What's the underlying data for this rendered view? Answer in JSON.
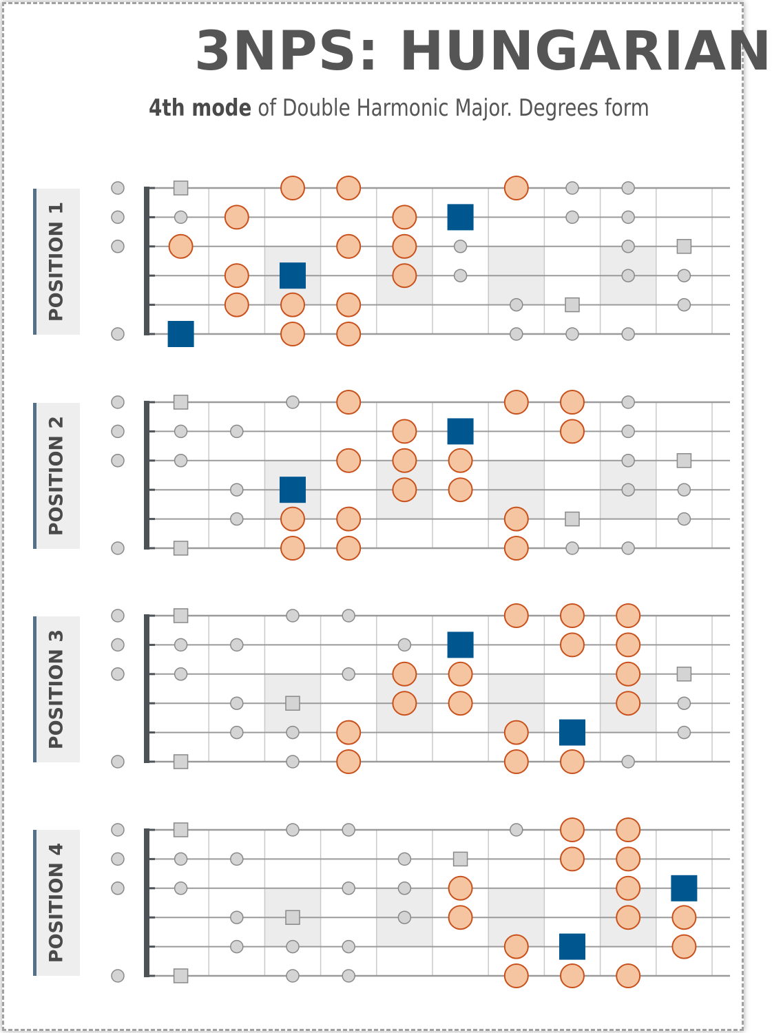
{
  "title": "3NPS: HUNGARIAN",
  "subtitle": {
    "bold": "4th mode",
    "rest": " of Double Harmonic Major. Degrees form"
  },
  "colors": {
    "scale_note_fill": "#f5c4a1",
    "scale_note_stroke": "#c8501b",
    "root_note": "#00578f",
    "other_note_fill": "#d4d4d4",
    "other_note_stroke": "#888888",
    "position_bar": "#557089",
    "fret_marker_shade": "#ececec",
    "nut": "#4d5257"
  },
  "fretboard": {
    "strings": 6,
    "visible_frets": 10,
    "shaded_frets": [
      3,
      5,
      7,
      9
    ],
    "open_string_dots_per_position": [
      [
        1,
        2,
        3,
        6
      ],
      [
        1,
        2,
        3,
        6
      ],
      [
        1,
        2,
        3,
        6
      ],
      [
        1,
        2,
        3,
        6
      ]
    ]
  },
  "positions": [
    {
      "label": "POSITION 1",
      "notes": [
        {
          "s": 1,
          "f": 1,
          "t": "sq"
        },
        {
          "s": 1,
          "f": 3,
          "t": "sc"
        },
        {
          "s": 1,
          "f": 4,
          "t": "sc"
        },
        {
          "s": 1,
          "f": 7,
          "t": "sc"
        },
        {
          "s": 1,
          "f": 8,
          "t": "dot"
        },
        {
          "s": 1,
          "f": 9,
          "t": "dot"
        },
        {
          "s": 2,
          "f": 1,
          "t": "dot"
        },
        {
          "s": 2,
          "f": 2,
          "t": "sc"
        },
        {
          "s": 2,
          "f": 5,
          "t": "sc"
        },
        {
          "s": 2,
          "f": 6,
          "t": "root"
        },
        {
          "s": 2,
          "f": 8,
          "t": "dot"
        },
        {
          "s": 2,
          "f": 9,
          "t": "dot"
        },
        {
          "s": 3,
          "f": 1,
          "t": "sc"
        },
        {
          "s": 3,
          "f": 4,
          "t": "sc"
        },
        {
          "s": 3,
          "f": 5,
          "t": "sc"
        },
        {
          "s": 3,
          "f": 6,
          "t": "dot"
        },
        {
          "s": 3,
          "f": 9,
          "t": "dot"
        },
        {
          "s": 3,
          "f": 10,
          "t": "sq"
        },
        {
          "s": 4,
          "f": 2,
          "t": "sc"
        },
        {
          "s": 4,
          "f": 3,
          "t": "root"
        },
        {
          "s": 4,
          "f": 5,
          "t": "sc"
        },
        {
          "s": 4,
          "f": 6,
          "t": "dot"
        },
        {
          "s": 4,
          "f": 9,
          "t": "dot"
        },
        {
          "s": 4,
          "f": 10,
          "t": "dot"
        },
        {
          "s": 5,
          "f": 2,
          "t": "sc"
        },
        {
          "s": 5,
          "f": 3,
          "t": "sc"
        },
        {
          "s": 5,
          "f": 4,
          "t": "sc"
        },
        {
          "s": 5,
          "f": 7,
          "t": "dot"
        },
        {
          "s": 5,
          "f": 8,
          "t": "sq"
        },
        {
          "s": 5,
          "f": 10,
          "t": "dot"
        },
        {
          "s": 6,
          "f": 1,
          "t": "root"
        },
        {
          "s": 6,
          "f": 3,
          "t": "sc"
        },
        {
          "s": 6,
          "f": 4,
          "t": "sc"
        },
        {
          "s": 6,
          "f": 7,
          "t": "dot"
        },
        {
          "s": 6,
          "f": 8,
          "t": "dot"
        },
        {
          "s": 6,
          "f": 9,
          "t": "dot"
        }
      ]
    },
    {
      "label": "POSITION 2",
      "notes": [
        {
          "s": 1,
          "f": 1,
          "t": "sq"
        },
        {
          "s": 1,
          "f": 3,
          "t": "dot"
        },
        {
          "s": 1,
          "f": 4,
          "t": "sc"
        },
        {
          "s": 1,
          "f": 7,
          "t": "sc"
        },
        {
          "s": 1,
          "f": 8,
          "t": "sc"
        },
        {
          "s": 1,
          "f": 9,
          "t": "dot"
        },
        {
          "s": 2,
          "f": 1,
          "t": "dot"
        },
        {
          "s": 2,
          "f": 2,
          "t": "dot"
        },
        {
          "s": 2,
          "f": 5,
          "t": "sc"
        },
        {
          "s": 2,
          "f": 6,
          "t": "root"
        },
        {
          "s": 2,
          "f": 8,
          "t": "sc"
        },
        {
          "s": 2,
          "f": 9,
          "t": "dot"
        },
        {
          "s": 3,
          "f": 1,
          "t": "dot"
        },
        {
          "s": 3,
          "f": 4,
          "t": "sc"
        },
        {
          "s": 3,
          "f": 5,
          "t": "sc"
        },
        {
          "s": 3,
          "f": 6,
          "t": "sc"
        },
        {
          "s": 3,
          "f": 9,
          "t": "dot"
        },
        {
          "s": 3,
          "f": 10,
          "t": "sq"
        },
        {
          "s": 4,
          "f": 2,
          "t": "dot"
        },
        {
          "s": 4,
          "f": 3,
          "t": "root"
        },
        {
          "s": 4,
          "f": 5,
          "t": "sc"
        },
        {
          "s": 4,
          "f": 6,
          "t": "sc"
        },
        {
          "s": 4,
          "f": 9,
          "t": "dot"
        },
        {
          "s": 4,
          "f": 10,
          "t": "dot"
        },
        {
          "s": 5,
          "f": 2,
          "t": "dot"
        },
        {
          "s": 5,
          "f": 3,
          "t": "sc"
        },
        {
          "s": 5,
          "f": 4,
          "t": "sc"
        },
        {
          "s": 5,
          "f": 7,
          "t": "sc"
        },
        {
          "s": 5,
          "f": 8,
          "t": "sq"
        },
        {
          "s": 5,
          "f": 10,
          "t": "dot"
        },
        {
          "s": 6,
          "f": 1,
          "t": "sq"
        },
        {
          "s": 6,
          "f": 3,
          "t": "sc"
        },
        {
          "s": 6,
          "f": 4,
          "t": "sc"
        },
        {
          "s": 6,
          "f": 7,
          "t": "sc"
        },
        {
          "s": 6,
          "f": 8,
          "t": "dot"
        },
        {
          "s": 6,
          "f": 9,
          "t": "dot"
        }
      ]
    },
    {
      "label": "POSITION 3",
      "notes": [
        {
          "s": 1,
          "f": 1,
          "t": "sq"
        },
        {
          "s": 1,
          "f": 3,
          "t": "dot"
        },
        {
          "s": 1,
          "f": 4,
          "t": "dot"
        },
        {
          "s": 1,
          "f": 7,
          "t": "sc"
        },
        {
          "s": 1,
          "f": 8,
          "t": "sc"
        },
        {
          "s": 1,
          "f": 9,
          "t": "sc"
        },
        {
          "s": 2,
          "f": 1,
          "t": "dot"
        },
        {
          "s": 2,
          "f": 2,
          "t": "dot"
        },
        {
          "s": 2,
          "f": 5,
          "t": "dot"
        },
        {
          "s": 2,
          "f": 6,
          "t": "root"
        },
        {
          "s": 2,
          "f": 8,
          "t": "sc"
        },
        {
          "s": 2,
          "f": 9,
          "t": "sc"
        },
        {
          "s": 3,
          "f": 1,
          "t": "dot"
        },
        {
          "s": 3,
          "f": 4,
          "t": "dot"
        },
        {
          "s": 3,
          "f": 5,
          "t": "sc"
        },
        {
          "s": 3,
          "f": 6,
          "t": "sc"
        },
        {
          "s": 3,
          "f": 9,
          "t": "sc"
        },
        {
          "s": 3,
          "f": 10,
          "t": "sq"
        },
        {
          "s": 4,
          "f": 2,
          "t": "dot"
        },
        {
          "s": 4,
          "f": 3,
          "t": "sq"
        },
        {
          "s": 4,
          "f": 5,
          "t": "sc"
        },
        {
          "s": 4,
          "f": 6,
          "t": "sc"
        },
        {
          "s": 4,
          "f": 9,
          "t": "sc"
        },
        {
          "s": 4,
          "f": 10,
          "t": "dot"
        },
        {
          "s": 5,
          "f": 2,
          "t": "dot"
        },
        {
          "s": 5,
          "f": 3,
          "t": "dot"
        },
        {
          "s": 5,
          "f": 4,
          "t": "sc"
        },
        {
          "s": 5,
          "f": 7,
          "t": "sc"
        },
        {
          "s": 5,
          "f": 8,
          "t": "root"
        },
        {
          "s": 5,
          "f": 10,
          "t": "dot"
        },
        {
          "s": 6,
          "f": 1,
          "t": "sq"
        },
        {
          "s": 6,
          "f": 3,
          "t": "dot"
        },
        {
          "s": 6,
          "f": 4,
          "t": "sc"
        },
        {
          "s": 6,
          "f": 7,
          "t": "sc"
        },
        {
          "s": 6,
          "f": 8,
          "t": "sc"
        },
        {
          "s": 6,
          "f": 9,
          "t": "dot"
        }
      ]
    },
    {
      "label": "POSITION 4",
      "notes": [
        {
          "s": 1,
          "f": 1,
          "t": "sq"
        },
        {
          "s": 1,
          "f": 3,
          "t": "dot"
        },
        {
          "s": 1,
          "f": 4,
          "t": "dot"
        },
        {
          "s": 1,
          "f": 7,
          "t": "dot"
        },
        {
          "s": 1,
          "f": 8,
          "t": "sc"
        },
        {
          "s": 1,
          "f": 9,
          "t": "sc"
        },
        {
          "s": 2,
          "f": 1,
          "t": "dot"
        },
        {
          "s": 2,
          "f": 2,
          "t": "dot"
        },
        {
          "s": 2,
          "f": 5,
          "t": "dot"
        },
        {
          "s": 2,
          "f": 6,
          "t": "sq"
        },
        {
          "s": 2,
          "f": 8,
          "t": "sc"
        },
        {
          "s": 2,
          "f": 9,
          "t": "sc"
        },
        {
          "s": 3,
          "f": 1,
          "t": "dot"
        },
        {
          "s": 3,
          "f": 4,
          "t": "dot"
        },
        {
          "s": 3,
          "f": 5,
          "t": "dot"
        },
        {
          "s": 3,
          "f": 6,
          "t": "sc"
        },
        {
          "s": 3,
          "f": 9,
          "t": "sc"
        },
        {
          "s": 3,
          "f": 10,
          "t": "root"
        },
        {
          "s": 4,
          "f": 2,
          "t": "dot"
        },
        {
          "s": 4,
          "f": 3,
          "t": "sq"
        },
        {
          "s": 4,
          "f": 5,
          "t": "dot"
        },
        {
          "s": 4,
          "f": 6,
          "t": "sc"
        },
        {
          "s": 4,
          "f": 9,
          "t": "sc"
        },
        {
          "s": 4,
          "f": 10,
          "t": "sc"
        },
        {
          "s": 5,
          "f": 2,
          "t": "dot"
        },
        {
          "s": 5,
          "f": 3,
          "t": "dot"
        },
        {
          "s": 5,
          "f": 4,
          "t": "dot"
        },
        {
          "s": 5,
          "f": 7,
          "t": "sc"
        },
        {
          "s": 5,
          "f": 8,
          "t": "root"
        },
        {
          "s": 5,
          "f": 10,
          "t": "sc"
        },
        {
          "s": 6,
          "f": 1,
          "t": "sq"
        },
        {
          "s": 6,
          "f": 3,
          "t": "dot"
        },
        {
          "s": 6,
          "f": 4,
          "t": "dot"
        },
        {
          "s": 6,
          "f": 7,
          "t": "sc"
        },
        {
          "s": 6,
          "f": 8,
          "t": "sc"
        },
        {
          "s": 6,
          "f": 9,
          "t": "sc"
        }
      ]
    }
  ]
}
